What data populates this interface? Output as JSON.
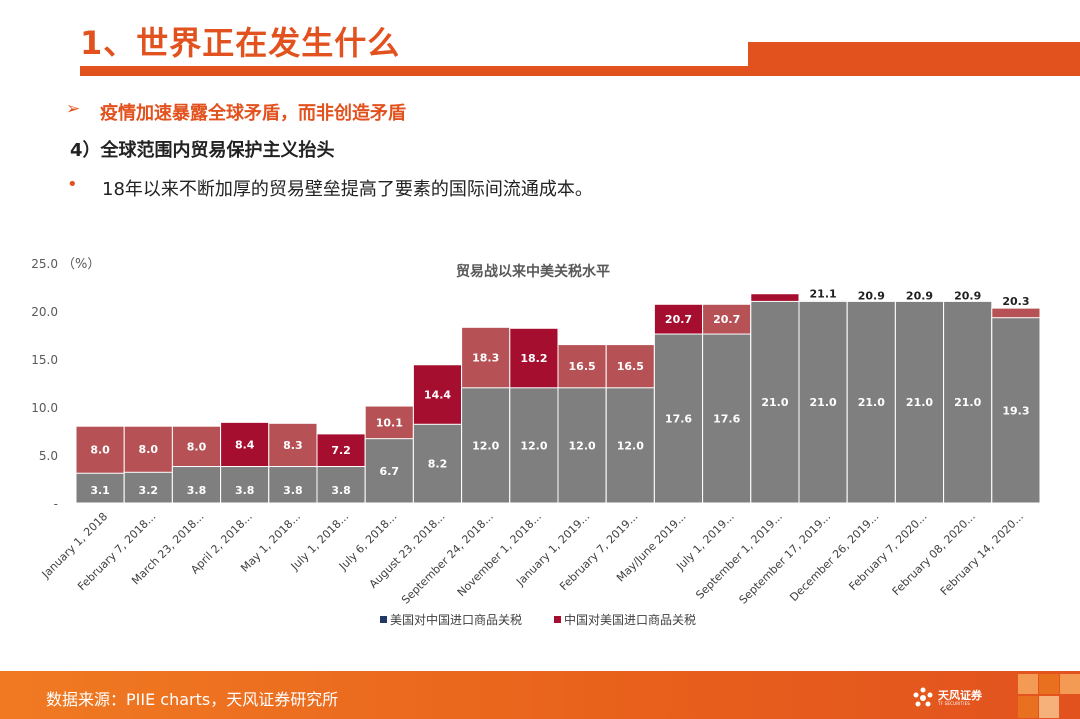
{
  "header": {
    "title": "1、世界正在发生什么",
    "subtitle": "疫情加速暴露全球矛盾，而非创造矛盾",
    "section_heading": "4）全球范围内贸易保护主义抬头",
    "bullet_text": "18年以来不断加厚的贸易壁垒提高了要素的国际间流通成本。"
  },
  "icons": {
    "subtitle_bullet": "arrow-bullet-icon",
    "text_bullet": "dot-bullet-icon",
    "logo": "tianfeng-logo-icon"
  },
  "colors": {
    "accent": "#E2521E",
    "us_series": "#7F7F7F",
    "cn_series": "#B65256",
    "highlight_red": "#A50E2E"
  },
  "chart_data": {
    "type": "bar",
    "title": "贸易战以来中美关税水平",
    "ylabel": "（%）",
    "ylim": [
      0,
      25
    ],
    "yticks": [
      "-",
      "5.0",
      "10.0",
      "15.0",
      "20.0",
      "25.0"
    ],
    "stacking": "overlay",
    "legend_position": "bottom",
    "categories": [
      "January 1, 2018",
      "February 7, 2018...",
      "March 23, 2018...",
      "April 2, 2018...",
      "May 1, 2018...",
      "July 1, 2018...",
      "July 6, 2018...",
      "August 23, 2018...",
      "September 24, 2018...",
      "November 1, 2018...",
      "January 1, 2019...",
      "February 7, 2019...",
      "May/June 2019...",
      "July 1, 2019...",
      "September 1, 2019...",
      "September 17, 2019...",
      "December 26, 2019...",
      "February 7, 2020...",
      "February 08, 2020...",
      "February 14, 2020..."
    ],
    "series": [
      {
        "name": "美国对中国进口商品关税",
        "color": "#7F7F7F",
        "values": [
          3.1,
          3.2,
          3.8,
          3.8,
          3.8,
          3.8,
          6.7,
          8.2,
          12.0,
          12.0,
          12.0,
          12.0,
          17.6,
          17.6,
          21.0,
          21.0,
          21.0,
          21.0,
          21.0,
          19.3
        ]
      },
      {
        "name": "中国对美国进口商品关税",
        "color": "#B65256",
        "values": [
          8.0,
          8.0,
          8.0,
          8.4,
          8.3,
          7.2,
          10.1,
          14.4,
          18.3,
          18.2,
          16.5,
          16.5,
          20.7,
          20.7,
          21.8,
          21.1,
          20.9,
          20.9,
          20.9,
          20.3
        ]
      }
    ],
    "us_labels": [
      "3.1",
      "3.2",
      "3.8",
      "3.8",
      "3.8",
      "3.8",
      "6.7",
      "8.2",
      "12.0",
      "12.0",
      "12.0",
      "12.0",
      "17.6",
      "17.6",
      "21.0",
      "21.0",
      "21.0",
      "21.0",
      "21.0",
      "19.3"
    ],
    "cn_labels": [
      "8.0",
      "8.0",
      "8.0",
      "8.4",
      "8.3",
      "7.2",
      "10.1",
      "14.4",
      "18.3",
      "18.2",
      "16.5",
      "16.5",
      "20.7",
      "20.7",
      "",
      "21.1",
      "20.9",
      "20.9",
      "20.9",
      "20.3"
    ],
    "cn_highlight_indices": [
      3,
      5,
      7,
      9,
      12,
      14
    ]
  },
  "footer": {
    "source": "数据来源：PIIE charts，天风证券研究所",
    "logo_text": "天风证券",
    "logo_sub": "TF SECURITIES"
  }
}
